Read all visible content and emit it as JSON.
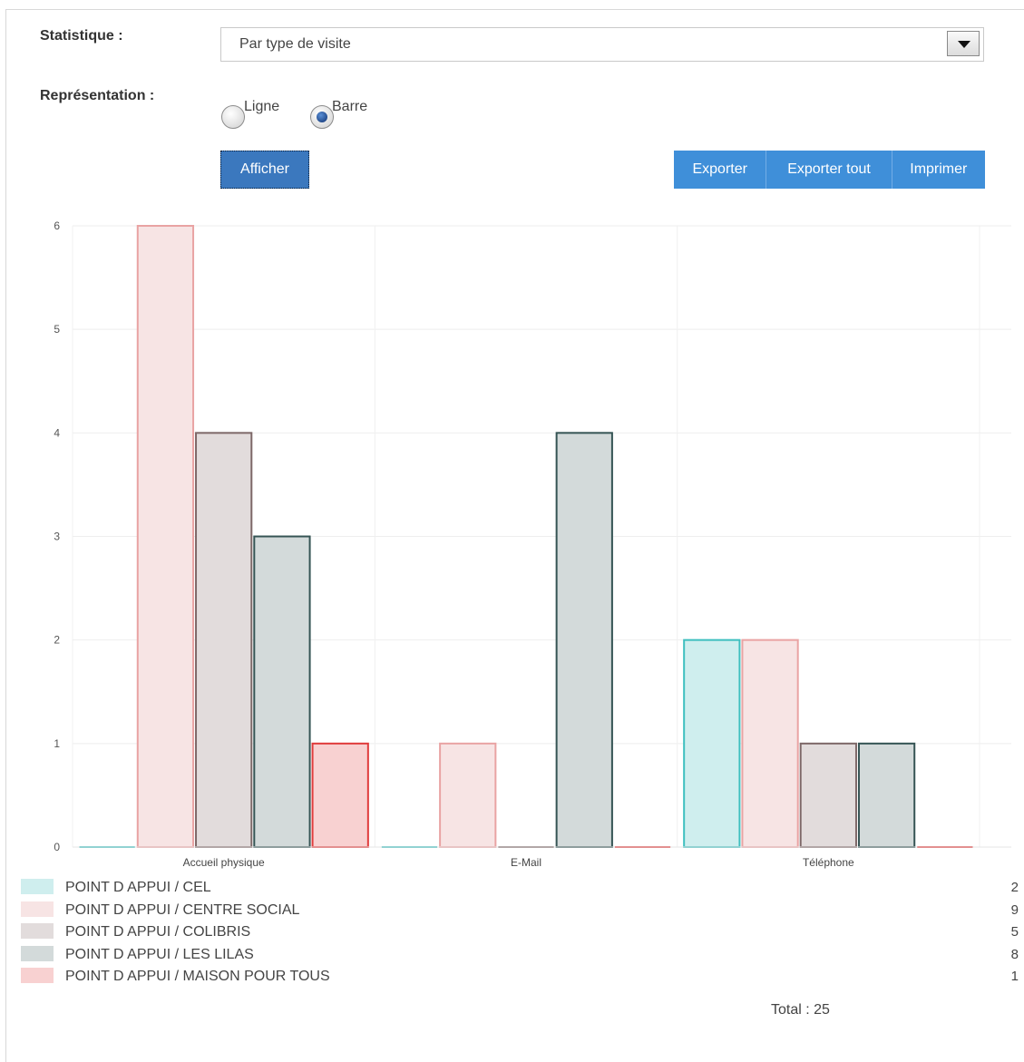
{
  "form": {
    "statistique_label": "Statistique :",
    "statistique_value": "Par type de visite",
    "representation_label": "Représentation :",
    "options": [
      {
        "label": "Ligne",
        "selected": false
      },
      {
        "label": "Barre",
        "selected": true
      }
    ],
    "afficher_label": "Afficher",
    "buttons": [
      "Exporter",
      "Exporter tout",
      "Imprimer"
    ]
  },
  "colors": {
    "button_primary": "#3f8fd9",
    "button_active": "#3b78be"
  },
  "chart_data": {
    "type": "bar",
    "categories": [
      "Accueil physique",
      "E-Mail",
      "Téléphone"
    ],
    "ylim": [
      0,
      6
    ],
    "yticks": [
      0,
      1,
      2,
      3,
      4,
      5,
      6
    ],
    "grid": true,
    "legend": "bottom",
    "series": [
      {
        "name": "POINT D APPUI / CEL",
        "values": [
          0,
          0,
          2
        ],
        "total": 2,
        "fill": "#cfeeee",
        "stroke": "#3fbfbf"
      },
      {
        "name": "POINT D APPUI / CENTRE SOCIAL",
        "values": [
          6,
          1,
          2
        ],
        "total": 9,
        "fill": "#f7e4e4",
        "stroke": "#e9a3a3"
      },
      {
        "name": "POINT D APPUI / COLIBRIS",
        "values": [
          4,
          0,
          1
        ],
        "total": 5,
        "fill": "#e2dcdc",
        "stroke": "#7d6868"
      },
      {
        "name": "POINT D APPUI / LES LILAS",
        "values": [
          3,
          4,
          1
        ],
        "total": 8,
        "fill": "#d3dada",
        "stroke": "#355454"
      },
      {
        "name": "POINT D APPUI / MAISON POUR TOUS",
        "values": [
          1,
          0,
          0
        ],
        "total": 1,
        "fill": "#f8d1d1",
        "stroke": "#e03b3b"
      }
    ],
    "total_label": "Total : 25"
  }
}
